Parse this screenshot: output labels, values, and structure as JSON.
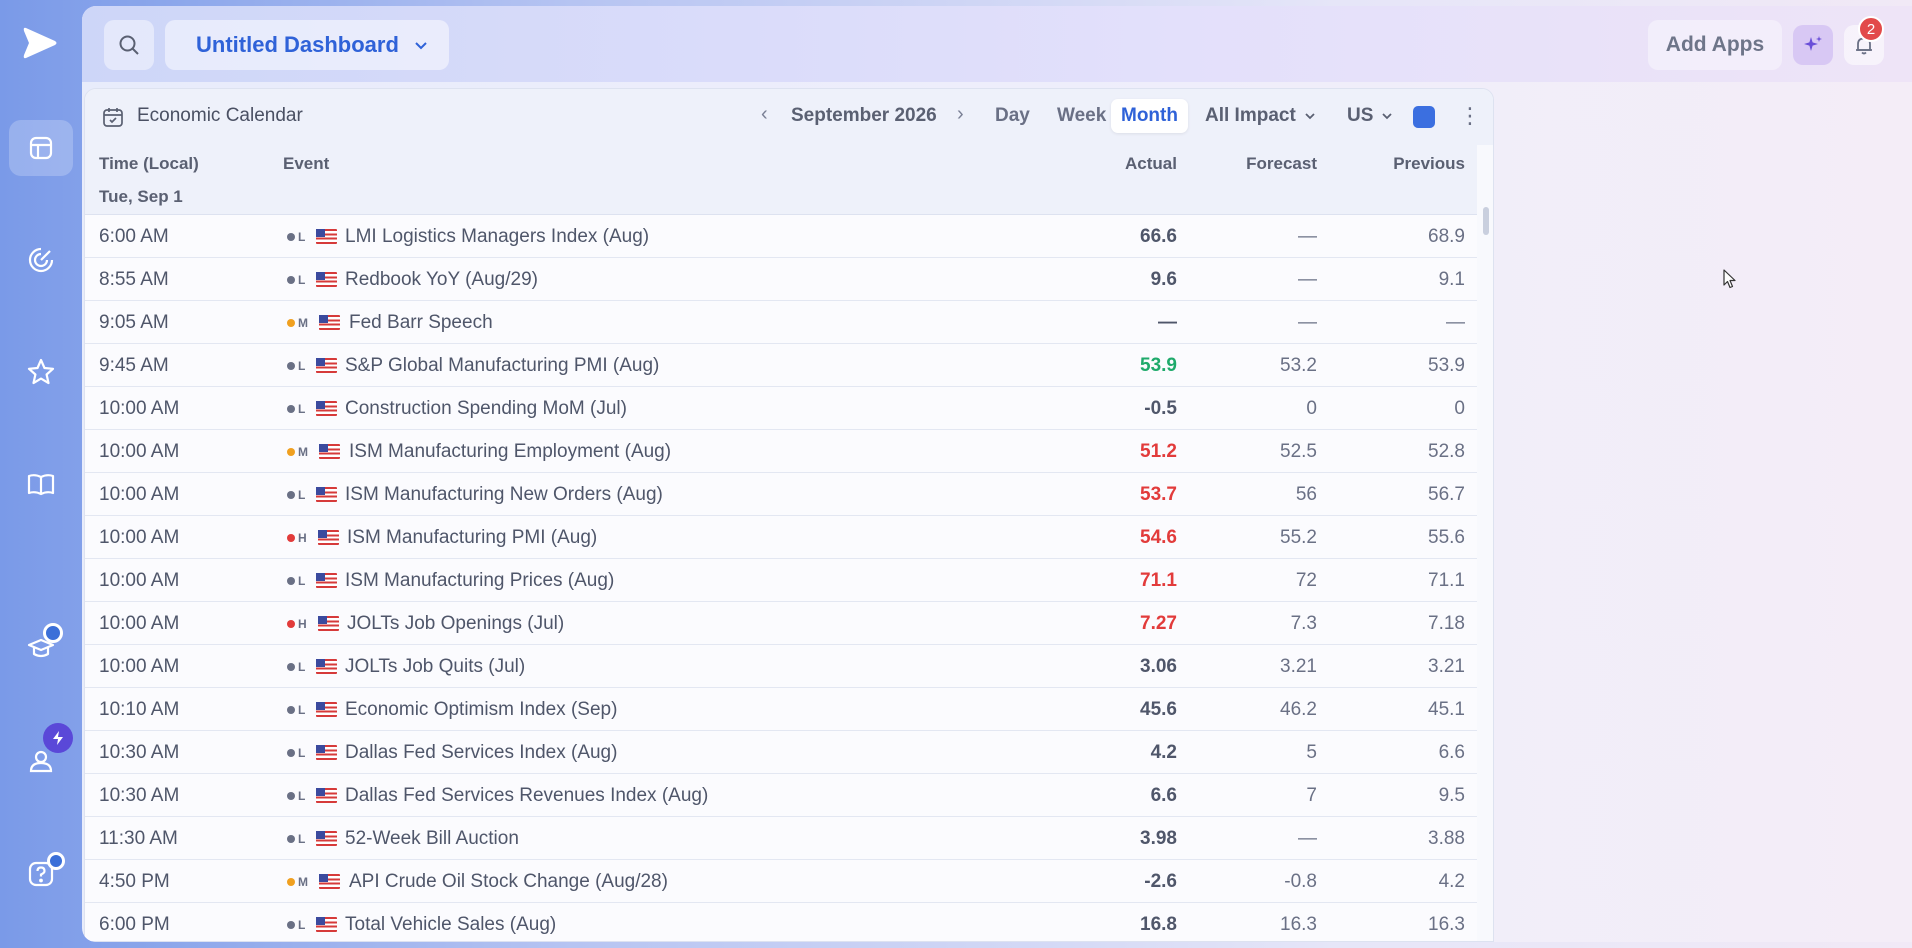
{
  "header": {
    "dashboard_title": "Untitled Dashboard",
    "add_apps_label": "Add Apps",
    "notification_count": "2"
  },
  "rail": {
    "icons": [
      "logo-icon",
      "dashboard-icon",
      "radar-icon",
      "star-icon",
      "book-icon",
      "learn-icon",
      "profile-icon",
      "help-icon"
    ]
  },
  "widget": {
    "title": "Economic Calendar",
    "month": "September 2026",
    "views": [
      "Day",
      "Week",
      "Month"
    ],
    "active_view": "Month",
    "impact_filter": "All Impact",
    "country_filter": "US",
    "accent_color": "#3b6fe0",
    "columns": {
      "time": "Time (Local)",
      "event": "Event",
      "actual": "Actual",
      "forecast": "Forecast",
      "previous": "Previous"
    },
    "day_label": "Tue, Sep 1",
    "rows": [
      {
        "time": "6:00 AM",
        "impact": "L",
        "event": "LMI Logistics Managers Index (Aug)",
        "actual": "66.6",
        "actual_color": "#4f566a",
        "forecast": "—",
        "previous": "68.9"
      },
      {
        "time": "8:55 AM",
        "impact": "L",
        "event": "Redbook YoY (Aug/29)",
        "actual": "9.6",
        "actual_color": "#4f566a",
        "forecast": "—",
        "previous": "9.1"
      },
      {
        "time": "9:05 AM",
        "impact": "M",
        "event": "Fed Barr Speech",
        "actual": "—",
        "actual_color": "#4f566a",
        "forecast": "—",
        "previous": "—"
      },
      {
        "time": "9:45 AM",
        "impact": "L",
        "event": "S&P Global Manufacturing PMI (Aug)",
        "actual": "53.9",
        "actual_color": "#1faa6b",
        "forecast": "53.2",
        "previous": "53.9"
      },
      {
        "time": "10:00 AM",
        "impact": "L",
        "event": "Construction Spending MoM (Jul)",
        "actual": "-0.5",
        "actual_color": "#4f566a",
        "forecast": "0",
        "previous": "0"
      },
      {
        "time": "10:00 AM",
        "impact": "M",
        "event": "ISM Manufacturing Employment (Aug)",
        "actual": "51.2",
        "actual_color": "#e23b3b",
        "forecast": "52.5",
        "previous": "52.8"
      },
      {
        "time": "10:00 AM",
        "impact": "L",
        "event": "ISM Manufacturing New Orders (Aug)",
        "actual": "53.7",
        "actual_color": "#e23b3b",
        "forecast": "56",
        "previous": "56.7"
      },
      {
        "time": "10:00 AM",
        "impact": "H",
        "event": "ISM Manufacturing PMI (Aug)",
        "actual": "54.6",
        "actual_color": "#e23b3b",
        "forecast": "55.2",
        "previous": "55.6"
      },
      {
        "time": "10:00 AM",
        "impact": "L",
        "event": "ISM Manufacturing Prices (Aug)",
        "actual": "71.1",
        "actual_color": "#e23b3b",
        "forecast": "72",
        "previous": "71.1"
      },
      {
        "time": "10:00 AM",
        "impact": "H",
        "event": "JOLTs Job Openings (Jul)",
        "actual": "7.27",
        "actual_color": "#e23b3b",
        "forecast": "7.3",
        "previous": "7.18"
      },
      {
        "time": "10:00 AM",
        "impact": "L",
        "event": "JOLTs Job Quits (Jul)",
        "actual": "3.06",
        "actual_color": "#4f566a",
        "forecast": "3.21",
        "previous": "3.21"
      },
      {
        "time": "10:10 AM",
        "impact": "L",
        "event": "Economic Optimism Index (Sep)",
        "actual": "45.6",
        "actual_color": "#4f566a",
        "forecast": "46.2",
        "previous": "45.1"
      },
      {
        "time": "10:30 AM",
        "impact": "L",
        "event": "Dallas Fed Services Index (Aug)",
        "actual": "4.2",
        "actual_color": "#4f566a",
        "forecast": "5",
        "previous": "6.6"
      },
      {
        "time": "10:30 AM",
        "impact": "L",
        "event": "Dallas Fed Services Revenues Index (Aug)",
        "actual": "6.6",
        "actual_color": "#4f566a",
        "forecast": "7",
        "previous": "9.5"
      },
      {
        "time": "11:30 AM",
        "impact": "L",
        "event": "52-Week Bill Auction",
        "actual": "3.98",
        "actual_color": "#4f566a",
        "forecast": "—",
        "previous": "3.88"
      },
      {
        "time": "4:50 PM",
        "impact": "M",
        "event": "API Crude Oil Stock Change (Aug/28)",
        "actual": "-2.6",
        "actual_color": "#4f566a",
        "forecast": "-0.8",
        "previous": "4.2"
      },
      {
        "time": "6:00 PM",
        "impact": "L",
        "event": "Total Vehicle Sales (Aug)",
        "actual": "16.8",
        "actual_color": "#4f566a",
        "forecast": "16.3",
        "previous": "16.3"
      }
    ],
    "impact_colors": {
      "L": "#6a7085",
      "M": "#f0a020",
      "H": "#e23b3b"
    }
  }
}
